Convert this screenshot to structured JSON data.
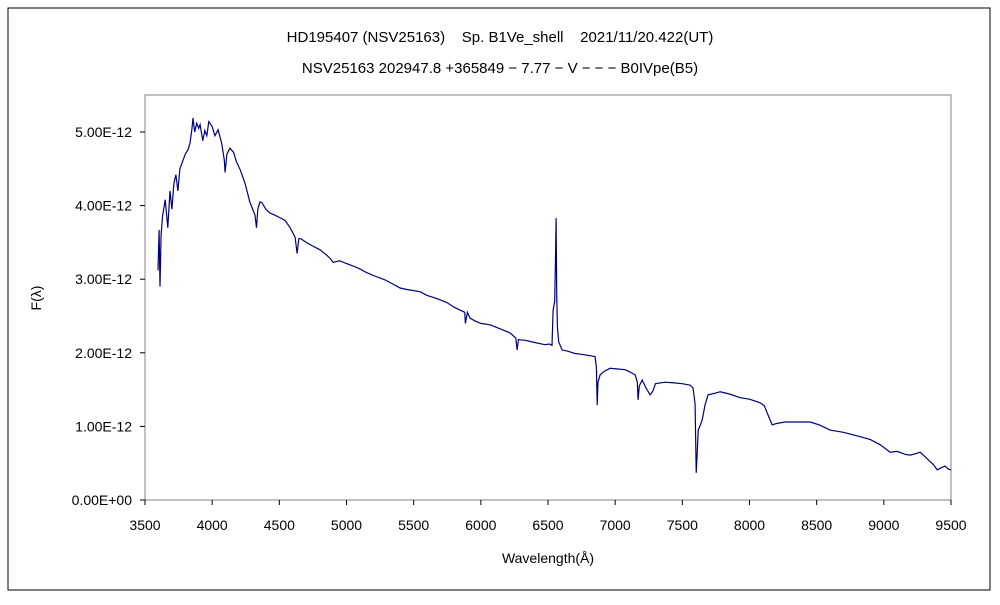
{
  "chart_data": {
    "type": "line",
    "title": "HD195407 (NSV25163)    Sp. B1Ve_shell    2021/11/20.422(UT)",
    "subtitle": "NSV25163 202947.8 +365849 − 7.77 − V − − − B0IVpe(B5)",
    "xlabel": "Wavelength(Å)",
    "ylabel": "F(λ)",
    "xlim": [
      3500,
      9500
    ],
    "ylim": [
      0,
      5.5e-12
    ],
    "grid": false,
    "x_ticks": [
      "3500",
      "4000",
      "4500",
      "5000",
      "5500",
      "6000",
      "6500",
      "7000",
      "7500",
      "8000",
      "8500",
      "9000",
      "9500"
    ],
    "y_ticks": [
      "0.00E+00",
      "1.00E-12",
      "2.00E-12",
      "3.00E-12",
      "4.00E-12",
      "5.00E-12"
    ],
    "line_color": "#00007f",
    "series": [
      {
        "name": "spectrum",
        "y_unit": "1e-12",
        "x": [
          3597,
          3605,
          3612,
          3620,
          3630,
          3650,
          3670,
          3686,
          3700,
          3715,
          3730,
          3745,
          3760,
          3780,
          3800,
          3820,
          3835,
          3850,
          3857,
          3870,
          3885,
          3900,
          3910,
          3930,
          3945,
          3960,
          3975,
          3999,
          4020,
          4044,
          4070,
          4090,
          4096,
          4110,
          4133,
          4160,
          4180,
          4210,
          4245,
          4280,
          4319,
          4330,
          4340,
          4355,
          4371,
          4400,
          4430,
          4468,
          4500,
          4542,
          4580,
          4617,
          4632,
          4645,
          4660,
          4700,
          4750,
          4803,
          4850,
          4880,
          4900,
          4950,
          4989,
          5050,
          5100,
          5138,
          5200,
          5287,
          5350,
          5399,
          5450,
          5548,
          5600,
          5650,
          5697,
          5750,
          5800,
          5845,
          5880,
          5885,
          5900,
          5920,
          5960,
          6000,
          6069,
          6150,
          6218,
          6260,
          6270,
          6280,
          6330,
          6400,
          6478,
          6510,
          6530,
          6538,
          6550,
          6555,
          6560,
          6565,
          6570,
          6580,
          6605,
          6650,
          6702,
          6750,
          6813,
          6850,
          6860,
          6866,
          6872,
          6888,
          6920,
          6962,
          7020,
          7074,
          7110,
          7149,
          7165,
          7171,
          7180,
          7201,
          7230,
          7260,
          7280,
          7300,
          7372,
          7450,
          7500,
          7558,
          7580,
          7595,
          7603,
          7610,
          7618,
          7630,
          7648,
          7670,
          7692,
          7740,
          7782,
          7850,
          7931,
          8000,
          8080,
          8110,
          8139,
          8169,
          8200,
          8265,
          8350,
          8452,
          8520,
          8600,
          8700,
          8824,
          8900,
          8973,
          9010,
          9047,
          9100,
          9160,
          9196,
          9240,
          9270,
          9300,
          9345,
          9370,
          9397,
          9430,
          9456,
          9480,
          9500
        ],
        "y": [
          3.12,
          3.67,
          2.9,
          3.6,
          3.85,
          4.08,
          3.7,
          4.2,
          3.95,
          4.3,
          4.42,
          4.2,
          4.5,
          4.6,
          4.7,
          4.76,
          4.85,
          5.05,
          5.19,
          5.0,
          5.12,
          5.05,
          5.1,
          4.88,
          5.02,
          4.95,
          5.14,
          5.08,
          4.95,
          5.03,
          4.85,
          4.62,
          4.45,
          4.7,
          4.78,
          4.72,
          4.6,
          4.48,
          4.3,
          4.05,
          3.87,
          3.7,
          3.95,
          4.05,
          4.04,
          3.95,
          3.9,
          3.87,
          3.84,
          3.8,
          3.7,
          3.57,
          3.35,
          3.55,
          3.55,
          3.5,
          3.45,
          3.4,
          3.33,
          3.28,
          3.23,
          3.25,
          3.22,
          3.18,
          3.14,
          3.1,
          3.05,
          2.99,
          2.93,
          2.88,
          2.86,
          2.83,
          2.78,
          2.75,
          2.72,
          2.68,
          2.62,
          2.58,
          2.55,
          2.4,
          2.55,
          2.47,
          2.43,
          2.4,
          2.38,
          2.32,
          2.27,
          2.2,
          2.04,
          2.18,
          2.17,
          2.14,
          2.11,
          2.12,
          2.1,
          2.58,
          2.7,
          3.2,
          3.83,
          2.8,
          2.35,
          2.15,
          2.04,
          2.02,
          1.99,
          1.98,
          1.96,
          1.95,
          1.8,
          1.29,
          1.6,
          1.7,
          1.75,
          1.79,
          1.78,
          1.77,
          1.74,
          1.7,
          1.6,
          1.36,
          1.55,
          1.63,
          1.52,
          1.43,
          1.48,
          1.58,
          1.6,
          1.59,
          1.58,
          1.56,
          1.52,
          1.3,
          0.37,
          0.6,
          0.95,
          1.0,
          1.09,
          1.3,
          1.43,
          1.45,
          1.47,
          1.44,
          1.39,
          1.37,
          1.32,
          1.28,
          1.15,
          1.02,
          1.04,
          1.06,
          1.06,
          1.06,
          1.02,
          0.95,
          0.92,
          0.86,
          0.82,
          0.75,
          0.7,
          0.65,
          0.66,
          0.62,
          0.61,
          0.63,
          0.65,
          0.6,
          0.52,
          0.48,
          0.41,
          0.44,
          0.46,
          0.42,
          0.41
        ]
      }
    ]
  }
}
